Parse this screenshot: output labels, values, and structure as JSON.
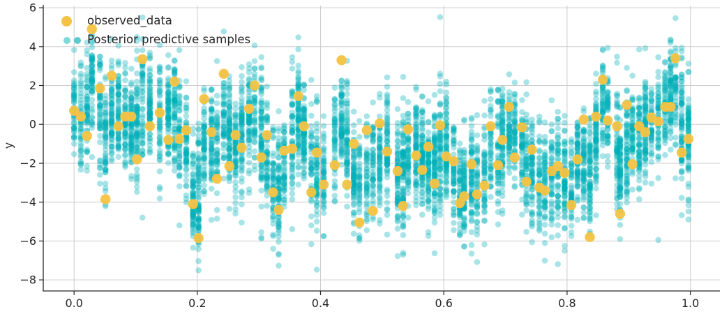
{
  "figure": {
    "background": "#ffffff",
    "text_color": "#262626"
  },
  "chart_data": {
    "type": "scatter",
    "title": "",
    "xlabel": "",
    "ylabel": "y",
    "xlim": [
      -0.05,
      1.048
    ],
    "ylim": [
      -8.57,
      6.11
    ],
    "grid": true,
    "grid_color": "#cccccc",
    "spine_color": "#262626",
    "spines": {
      "left": true,
      "bottom": true,
      "top": false,
      "right": false
    },
    "x_ticks": {
      "values": [
        0.0,
        0.2,
        0.4,
        0.6,
        0.8,
        1.0
      ],
      "labels": [
        "0.0",
        "0.2",
        "0.4",
        "0.6",
        "0.8",
        "1.0"
      ]
    },
    "y_ticks": {
      "values": [
        6,
        4,
        2,
        0,
        -2,
        -4,
        -6,
        -8
      ],
      "labels": [
        "6",
        "4",
        "2",
        "0",
        "−2",
        "−4",
        "−6",
        "−8"
      ]
    },
    "legend": {
      "position": "upper left",
      "entries": [
        {
          "label": "observed_data",
          "color": "#F5C342"
        },
        {
          "label": "Posterior predictive samples",
          "color": "#00B1B8"
        }
      ]
    },
    "series": [
      {
        "name": "observed_data",
        "type": "scatter",
        "color": "#F5C342",
        "alpha": 0.95,
        "marker_radius": 7.2,
        "x": [
          0.0,
          0.011,
          0.021,
          0.029,
          0.042,
          0.051,
          0.061,
          0.072,
          0.083,
          0.093,
          0.102,
          0.111,
          0.123,
          0.139,
          0.153,
          0.163,
          0.171,
          0.182,
          0.193,
          0.202,
          0.211,
          0.223,
          0.232,
          0.243,
          0.252,
          0.262,
          0.272,
          0.284,
          0.293,
          0.304,
          0.313,
          0.323,
          0.332,
          0.341,
          0.354,
          0.364,
          0.373,
          0.385,
          0.394,
          0.405,
          0.423,
          0.434,
          0.443,
          0.454,
          0.463,
          0.475,
          0.485,
          0.496,
          0.508,
          0.525,
          0.534,
          0.542,
          0.555,
          0.565,
          0.575,
          0.585,
          0.594,
          0.604,
          0.616,
          0.626,
          0.633,
          0.645,
          0.654,
          0.666,
          0.676,
          0.688,
          0.695,
          0.706,
          0.715,
          0.727,
          0.734,
          0.743,
          0.755,
          0.764,
          0.775,
          0.785,
          0.796,
          0.807,
          0.817,
          0.827,
          0.837,
          0.847,
          0.858,
          0.866,
          0.881,
          0.886,
          0.897,
          0.906,
          0.917,
          0.927,
          0.937,
          0.948,
          0.959,
          0.968,
          0.976,
          0.986,
          0.997
        ],
        "y": [
          0.7,
          0.4,
          -0.6,
          4.9,
          1.85,
          -3.85,
          2.5,
          -0.1,
          0.4,
          0.4,
          -1.8,
          3.35,
          -0.1,
          0.6,
          -0.8,
          2.2,
          -0.75,
          -0.3,
          -4.1,
          -5.85,
          1.3,
          -0.4,
          -2.8,
          2.6,
          -2.15,
          -0.55,
          -1.2,
          0.8,
          2.0,
          -1.7,
          -0.55,
          -3.5,
          -4.4,
          -1.35,
          -1.25,
          1.45,
          -0.1,
          -3.5,
          -1.45,
          -3.1,
          -2.1,
          3.3,
          -3.1,
          -1.0,
          -5.05,
          -0.3,
          -4.45,
          0.05,
          -1.4,
          -2.4,
          -4.2,
          -0.25,
          -1.6,
          -2.35,
          -1.15,
          -3.05,
          -0.05,
          -1.65,
          -1.9,
          -4.05,
          -3.7,
          -2.05,
          -3.6,
          -3.15,
          -0.1,
          -2.1,
          -0.8,
          0.9,
          -1.7,
          -0.15,
          -2.95,
          -1.3,
          -3.25,
          -3.4,
          -2.4,
          -2.15,
          -2.5,
          -4.15,
          -1.8,
          0.25,
          -5.8,
          0.4,
          2.3,
          0.2,
          -0.1,
          -4.6,
          1.0,
          -2.05,
          -0.1,
          -0.4,
          0.35,
          0.15,
          0.9,
          0.9,
          3.4,
          -1.45,
          -0.75
        ]
      },
      {
        "name": "Posterior predictive samples",
        "type": "scatter",
        "color": "#00B1B8",
        "alpha": 0.34,
        "marker_radius": 4.3,
        "generation": {
          "note": "vertical column of posterior-predictive draws at each observed x; regenerated deterministically from these parameters",
          "seed": 7,
          "n_min": 45,
          "n_max": 85,
          "sd_min": 1.05,
          "sd_max": 1.75,
          "center": "0.25/0.5/0.25 smoothing of observed y"
        }
      }
    ]
  }
}
